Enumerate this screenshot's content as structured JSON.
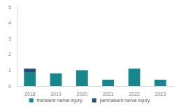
{
  "chart_data": {
    "type": "bar",
    "stacked": true,
    "grid": false,
    "legend": "bottom",
    "categories": [
      "2018",
      "2019",
      "2020",
      "2021",
      "2022",
      "2023"
    ],
    "series": [
      {
        "name": "transient nerve injury",
        "color": "#17878e",
        "values": [
          0.85,
          0.8,
          1.0,
          0.4,
          1.1,
          0.4
        ]
      },
      {
        "name": "permanent nerve injury",
        "color": "#1f4e79",
        "values": [
          0.25,
          0,
          0,
          0,
          0,
          0
        ]
      }
    ],
    "ylim": [
      0,
      5
    ],
    "yticks": [
      0,
      1,
      2,
      3,
      4,
      5
    ]
  }
}
